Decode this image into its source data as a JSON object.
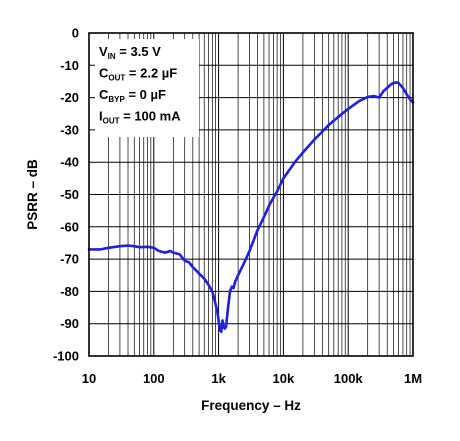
{
  "chart_data": {
    "type": "line",
    "title": "",
    "xlabel": "Frequency – Hz",
    "ylabel": "PSRR – dB",
    "x_scale": "log",
    "xlim": [
      10,
      1000000
    ],
    "ylim": [
      -100,
      0
    ],
    "grid": true,
    "x_tick_labels": [
      "10",
      "100",
      "1k",
      "10k",
      "100k",
      "1M"
    ],
    "y_tick_labels": [
      "0",
      "-10",
      "-20",
      "-30",
      "-40",
      "-50",
      "-60",
      "-70",
      "-80",
      "-90",
      "-100"
    ],
    "annotations": [
      {
        "main": "V",
        "sub": "IN",
        "rest": " = 3.5 V"
      },
      {
        "main": "C",
        "sub": "OUT",
        "rest": " = 2.2 µF"
      },
      {
        "main": "C",
        "sub": "BYP",
        "rest": " = 0 µF"
      },
      {
        "main": "I",
        "sub": "OUT",
        "rest": " = 100 mA"
      }
    ],
    "series": [
      {
        "color": "#1f1fe0",
        "x": [
          10,
          15,
          20,
          30,
          40,
          50,
          60,
          80,
          100,
          120,
          150,
          180,
          200,
          250,
          300,
          350,
          400,
          450,
          500,
          600,
          700,
          800,
          850,
          900,
          950,
          1000,
          1050,
          1100,
          1150,
          1200,
          1250,
          1300,
          1400,
          1500,
          1600,
          1700,
          1800,
          2000,
          2500,
          3000,
          3500,
          4000,
          5000,
          6000,
          7000,
          8000,
          10000,
          15000,
          20000,
          30000,
          40000,
          50000,
          70000,
          100000,
          150000,
          200000,
          250000,
          300000,
          350000,
          400000,
          450000,
          500000,
          550000,
          600000,
          700000,
          800000,
          900000,
          1000000
        ],
        "y": [
          -67,
          -67,
          -66.5,
          -66,
          -65.8,
          -66,
          -66.3,
          -66.2,
          -66.5,
          -67.5,
          -68,
          -67.5,
          -68,
          -68.5,
          -70.5,
          -71,
          -72.5,
          -73.5,
          -74.5,
          -76,
          -78,
          -80,
          -82,
          -84,
          -86,
          -89,
          -92,
          -92.5,
          -89,
          -91,
          -91.5,
          -91,
          -85,
          -80,
          -78.5,
          -79,
          -77,
          -75,
          -71,
          -67.5,
          -64,
          -61,
          -57,
          -53.5,
          -51,
          -49,
          -45,
          -40,
          -37,
          -33,
          -30.5,
          -28.5,
          -26,
          -23.5,
          -21,
          -19.8,
          -19.5,
          -20,
          -18,
          -17,
          -16,
          -15.5,
          -15.3,
          -15.5,
          -17,
          -19,
          -20.5,
          -21.5
        ]
      }
    ]
  }
}
